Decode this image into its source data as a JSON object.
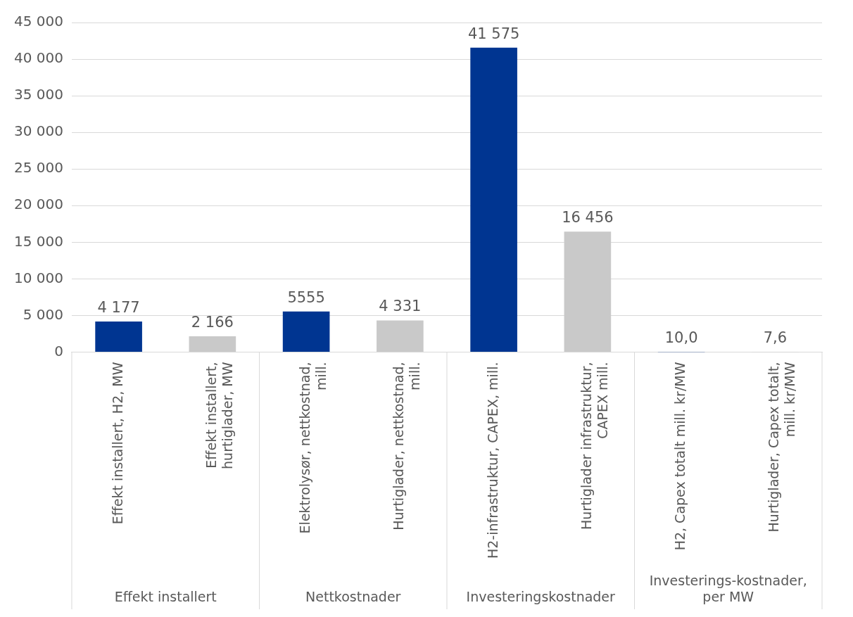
{
  "chart_data": {
    "type": "bar",
    "categories": [
      "Effekt installert, H2, MW",
      "Effekt installert, hurtiglader, MW",
      "Elektrolysør, nettkostnad, mill.",
      "Hurtiglader, nettkostnad, mill.",
      "H2-infrastruktur, CAPEX, mill.",
      "Hurtiglader infrastruktur, CAPEX mill.",
      "H2, Capex totalt mill. kr/MW",
      "Hurtiglader, Capex totalt, mill. kr/MW"
    ],
    "values": [
      4177,
      2166,
      5555,
      4331,
      41575,
      16456,
      10.0,
      7.6
    ],
    "value_labels": [
      "4 177",
      "2 166",
      "5555",
      "4 331",
      "41 575",
      "16 456",
      "10,0",
      "7,6"
    ],
    "colors": [
      "#003591",
      "#c9c9c9",
      "#003591",
      "#c9c9c9",
      "#003591",
      "#c9c9c9",
      "#003591",
      "#c9c9c9"
    ],
    "ylim": [
      0,
      45000
    ],
    "yticks": [
      {
        "value": 0,
        "label": "0"
      },
      {
        "value": 5000,
        "label": "5 000"
      },
      {
        "value": 10000,
        "label": "10 000"
      },
      {
        "value": 15000,
        "label": "15 000"
      },
      {
        "value": 20000,
        "label": "20 000"
      },
      {
        "value": 25000,
        "label": "25 000"
      },
      {
        "value": 30000,
        "label": "30 000"
      },
      {
        "value": 35000,
        "label": "35 000"
      },
      {
        "value": 40000,
        "label": "40 000"
      },
      {
        "value": 45000,
        "label": "45 000"
      }
    ],
    "grid": "y",
    "legend": false,
    "annotations": [
      "Effekt installert",
      "Nettkostnader",
      "Investeringskostnader",
      "Investerings-kostnader, per MW"
    ]
  }
}
